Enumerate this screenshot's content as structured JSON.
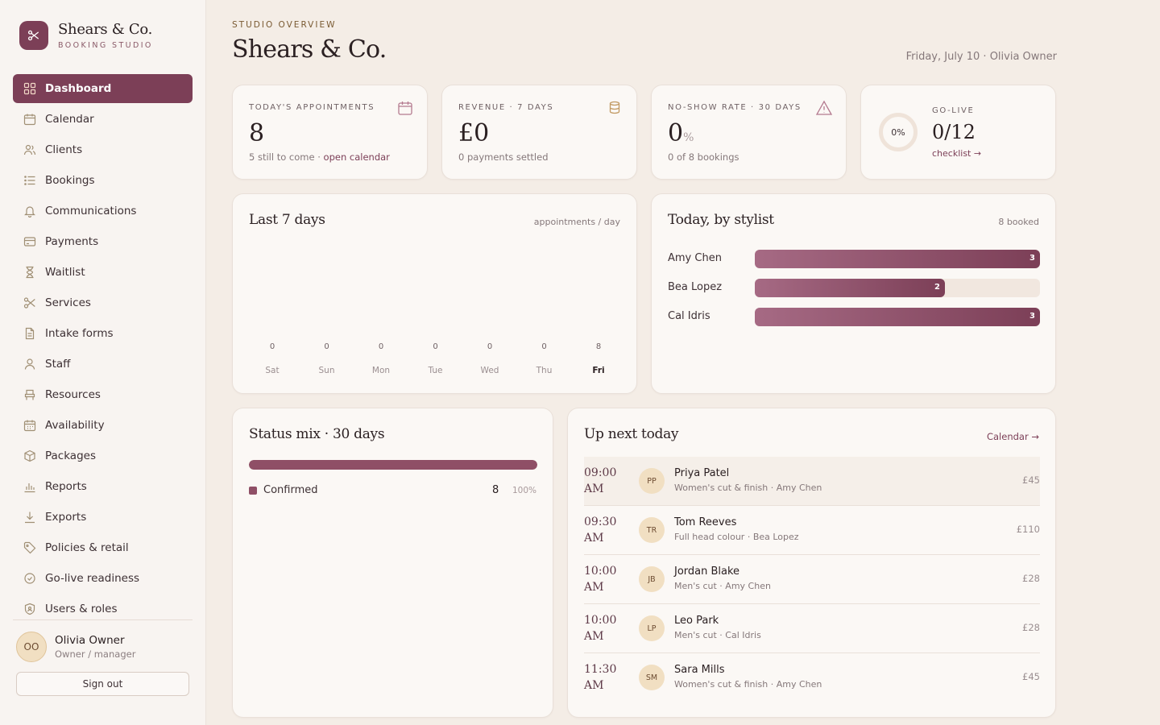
{
  "brand": {
    "name": "Shears & Co.",
    "subtitle": "BOOKING STUDIO"
  },
  "nav": [
    {
      "label": "Dashboard",
      "icon": "grid-icon",
      "active": true
    },
    {
      "label": "Calendar",
      "icon": "calendar-icon"
    },
    {
      "label": "Clients",
      "icon": "users-icon"
    },
    {
      "label": "Bookings",
      "icon": "list-icon"
    },
    {
      "label": "Communications",
      "icon": "bell-icon"
    },
    {
      "label": "Payments",
      "icon": "credit-card-icon"
    },
    {
      "label": "Waitlist",
      "icon": "hourglass-icon"
    },
    {
      "label": "Services",
      "icon": "scissors-icon"
    },
    {
      "label": "Intake forms",
      "icon": "document-icon"
    },
    {
      "label": "Staff",
      "icon": "person-icon"
    },
    {
      "label": "Resources",
      "icon": "chair-icon"
    },
    {
      "label": "Availability",
      "icon": "calendar-grid-icon"
    },
    {
      "label": "Packages",
      "icon": "box-icon"
    },
    {
      "label": "Reports",
      "icon": "bar-chart-icon"
    },
    {
      "label": "Exports",
      "icon": "download-icon"
    },
    {
      "label": "Policies & retail",
      "icon": "tag-icon"
    },
    {
      "label": "Go-live readiness",
      "icon": "badge-check-icon"
    },
    {
      "label": "Users & roles",
      "icon": "shield-icon"
    }
  ],
  "user": {
    "initials": "OO",
    "name": "Olivia Owner",
    "role": "Owner / manager",
    "signout": "Sign out"
  },
  "header": {
    "eyebrow": "STUDIO OVERVIEW",
    "title": "Shears & Co.",
    "meta": "Friday, July 10 · Olivia Owner"
  },
  "stats": {
    "appointments": {
      "label": "TODAY'S APPOINTMENTS",
      "value": "8",
      "sub": "5 still to come · ",
      "link": "open calendar"
    },
    "revenue": {
      "label": "REVENUE · 7 DAYS",
      "value": "£0",
      "sub": "0 payments settled"
    },
    "noshow": {
      "label": "NO-SHOW RATE · 30 DAYS",
      "value": "0",
      "unit": "%",
      "sub": "0 of 8 bookings"
    },
    "golive": {
      "label": "GO-LIVE",
      "ring": "0%",
      "progress": 0,
      "value": "0/12",
      "link": "checklist →"
    }
  },
  "last7": {
    "title": "Last 7 days",
    "meta": "appointments / day",
    "chart_data": {
      "type": "bar",
      "categories": [
        "Sat",
        "Sun",
        "Mon",
        "Tue",
        "Wed",
        "Thu",
        "Fri"
      ],
      "values": [
        0,
        0,
        0,
        0,
        0,
        0,
        8
      ],
      "highlight": "Fri"
    }
  },
  "stylists": {
    "title": "Today, by stylist",
    "meta": "8 booked",
    "max": 3,
    "rows": [
      {
        "name": "Amy Chen",
        "count": 3
      },
      {
        "name": "Bea Lopez",
        "count": 2
      },
      {
        "name": "Cal Idris",
        "count": 3
      }
    ]
  },
  "status_mix": {
    "title": "Status mix · 30 days",
    "rows": [
      {
        "label": "Confirmed",
        "count": "8",
        "pct": "100%",
        "fraction": 1.0,
        "color": "#8f4f66"
      }
    ]
  },
  "upnext": {
    "title": "Up next today",
    "link": "Calendar →",
    "rows": [
      {
        "time": "09:00",
        "ampm": "AM",
        "initials": "PP",
        "name": "Priya Patel",
        "service": "Women's cut & finish · Amy Chen",
        "price": "£45"
      },
      {
        "time": "09:30",
        "ampm": "AM",
        "initials": "TR",
        "name": "Tom Reeves",
        "service": "Full head colour · Bea Lopez",
        "price": "£110"
      },
      {
        "time": "10:00",
        "ampm": "AM",
        "initials": "JB",
        "name": "Jordan Blake",
        "service": "Men's cut · Amy Chen",
        "price": "£28"
      },
      {
        "time": "10:00",
        "ampm": "AM",
        "initials": "LP",
        "name": "Leo Park",
        "service": "Men's cut · Cal Idris",
        "price": "£28"
      },
      {
        "time": "11:30",
        "ampm": "AM",
        "initials": "SM",
        "name": "Sara Mills",
        "service": "Women's cut & finish · Amy Chen",
        "price": "£45"
      }
    ]
  },
  "colors": {
    "accent": "#7c3f57",
    "gold": "#c29a63",
    "background": "#f4ede6"
  }
}
